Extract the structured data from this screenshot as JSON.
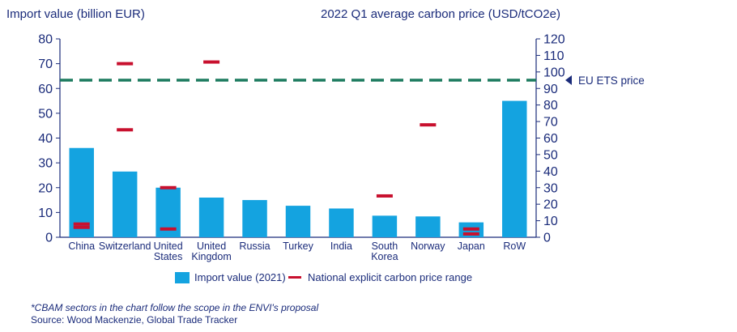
{
  "chart_data": {
    "type": "bar",
    "title_left": "Import value (billion EUR)",
    "title_right": "2022 Q1 average carbon price (USD/tCO2e)",
    "categories": [
      "China",
      "Switzerland",
      "United States",
      "United Kingdom",
      "Russia",
      "Turkey",
      "India",
      "South Korea",
      "Norway",
      "Japan",
      "RoW"
    ],
    "category_lines": [
      [
        "China"
      ],
      [
        "Switzerland"
      ],
      [
        "United",
        "States"
      ],
      [
        "United",
        "Kingdom"
      ],
      [
        "Russia"
      ],
      [
        "Turkey"
      ],
      [
        "India"
      ],
      [
        "South",
        "Korea"
      ],
      [
        "Norway"
      ],
      [
        "Japan"
      ],
      [
        "RoW"
      ]
    ],
    "series": [
      {
        "name": "Import value (2021)",
        "axis": "left",
        "values": [
          36,
          26.5,
          20,
          16,
          15,
          12.7,
          11.6,
          8.7,
          8.4,
          6,
          55
        ]
      }
    ],
    "price_marks": {
      "name": "National explicit carbon price range",
      "axis": "right",
      "points": [
        {
          "category": "China",
          "values": [
            6,
            8
          ]
        },
        {
          "category": "Switzerland",
          "values": [
            65,
            105
          ]
        },
        {
          "category": "United States",
          "values": [
            5,
            30
          ]
        },
        {
          "category": "United Kingdom",
          "values": [
            106
          ]
        },
        {
          "category": "South Korea",
          "values": [
            25
          ]
        },
        {
          "category": "Norway",
          "values": [
            68
          ]
        },
        {
          "category": "Japan",
          "values": [
            2,
            5
          ]
        }
      ]
    },
    "reference_line": {
      "label": "EU ETS price",
      "axis": "right",
      "value": 95
    },
    "y_left": {
      "range": [
        0,
        80
      ],
      "ticks": [
        0,
        10,
        20,
        30,
        40,
        50,
        60,
        70,
        80
      ]
    },
    "y_right": {
      "range": [
        0,
        120
      ],
      "ticks": [
        0,
        10,
        20,
        30,
        40,
        50,
        60,
        70,
        80,
        90,
        100,
        110,
        120
      ]
    },
    "grid": false,
    "legend": "bottom-center",
    "notes": [
      "*CBAM sectors in the chart follow the scope in the ENVI's proposal",
      "Source: Wood Mackenzie, Global Trade Tracker"
    ]
  },
  "colors": {
    "bar": "#14a3e0",
    "price": "#c8102e",
    "ets": "#1b7a5e",
    "axis": "#1a2b7a",
    "text": "#1a2b7a"
  }
}
